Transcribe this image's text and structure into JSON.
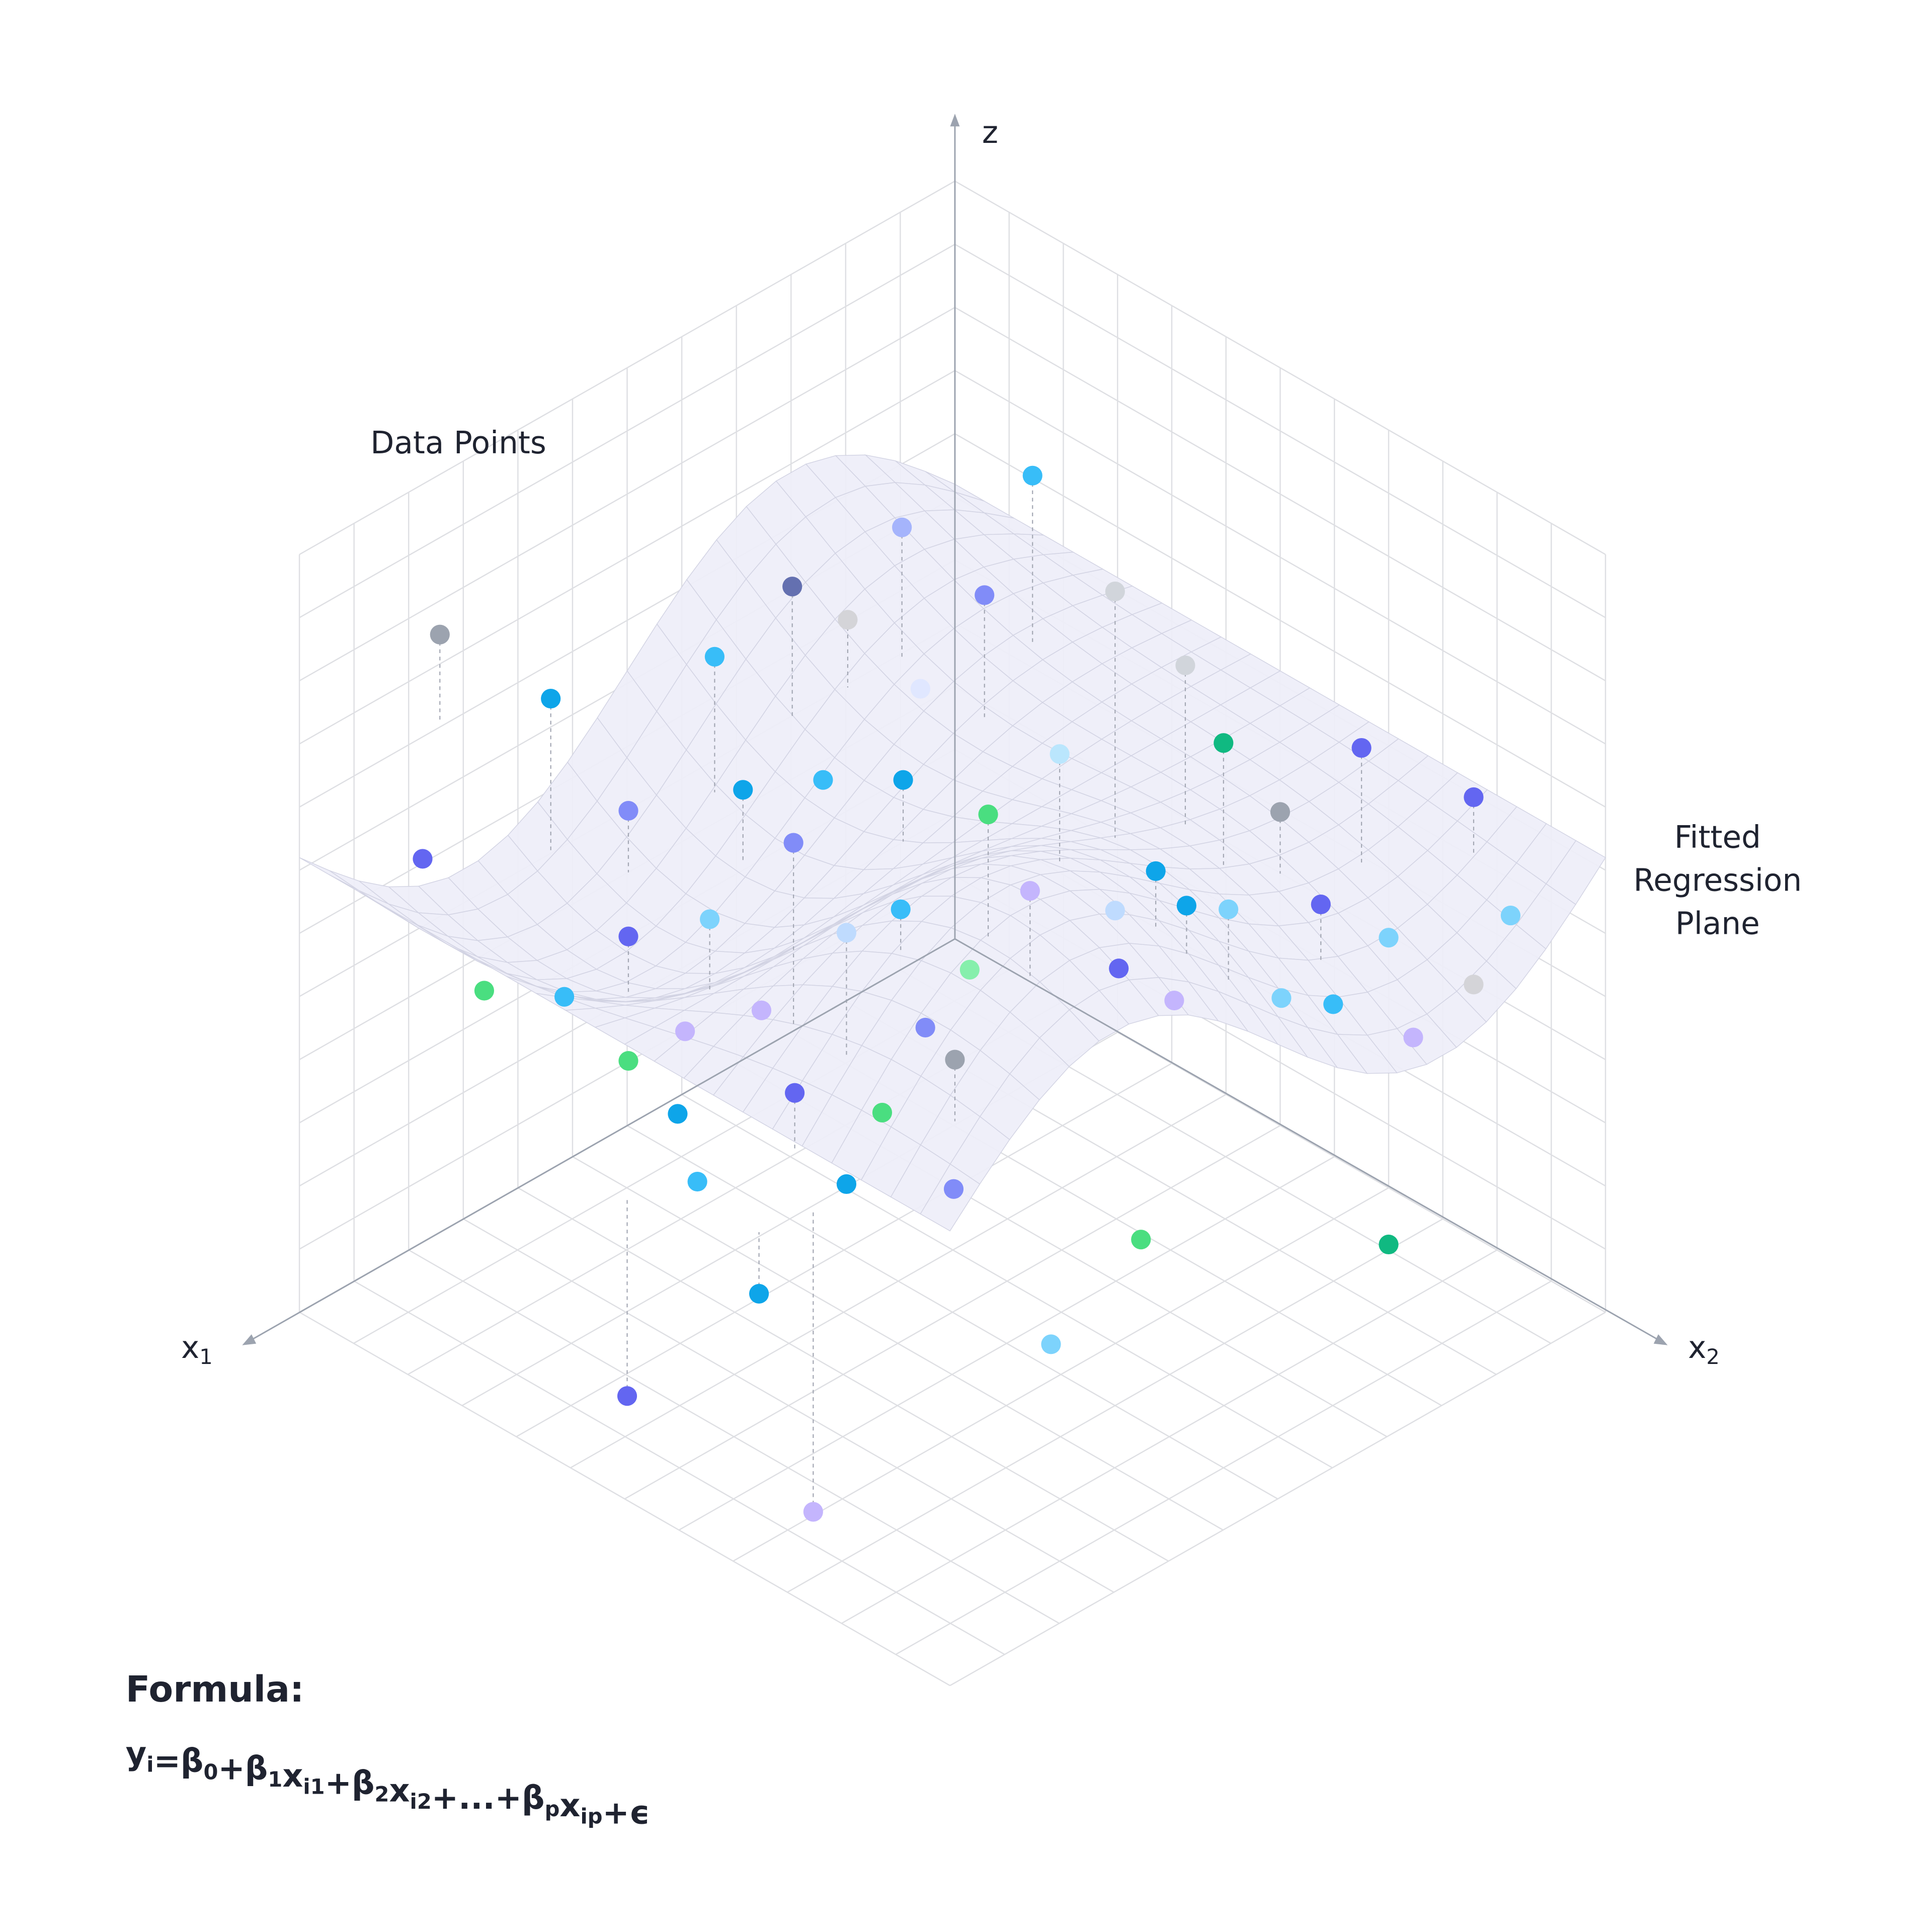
{
  "axes": {
    "z": "z",
    "x1": {
      "text": "x",
      "sub": "1"
    },
    "x2": {
      "text": "x",
      "sub": "2"
    }
  },
  "annotations": {
    "data_points": "Data Points",
    "fitted_plane": [
      "Fitted",
      "Regression",
      "Plane"
    ]
  },
  "formula": {
    "heading": "Formula:",
    "parts": [
      {
        "text": "y",
        "sub": "i"
      },
      {
        "text": "=β",
        "sub": "0"
      },
      {
        "text": "+β",
        "sub": "1"
      },
      {
        "text": "x",
        "sub": "i1"
      },
      {
        "text": "+β",
        "sub": "2"
      },
      {
        "text": "x",
        "sub": "i2"
      },
      {
        "text": "+...+β",
        "sub": "p"
      },
      {
        "text": "x",
        "sub": "ip"
      },
      {
        "text": "+ϵ"
      }
    ]
  }
}
